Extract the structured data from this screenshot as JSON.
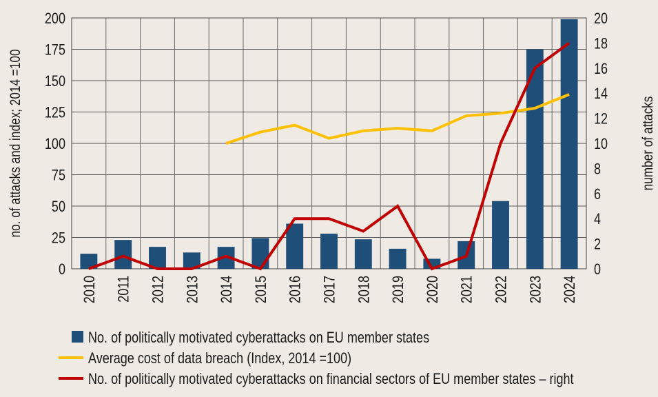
{
  "chart_data": {
    "type": "bar+line",
    "title": "",
    "categories": [
      "2010",
      "2011",
      "2012",
      "2013",
      "2014",
      "2015",
      "2016",
      "2017",
      "2018",
      "2019",
      "2020",
      "2021",
      "2022",
      "2023",
      "2024"
    ],
    "ylabel": "no. of attacks and index; 2014 =100",
    "y2label": "number of attacks",
    "ylim": [
      0,
      200
    ],
    "y2lim": [
      0,
      20
    ],
    "yticks": [
      "0",
      "25",
      "50",
      "75",
      "100",
      "125",
      "150",
      "175",
      "200"
    ],
    "y2ticks": [
      "0",
      "2",
      "4",
      "6",
      "8",
      "10",
      "12",
      "14",
      "16",
      "18",
      "20"
    ],
    "grid": true,
    "legend_position": "bottom",
    "series": [
      {
        "name": "No. of politically motivated cyberattacks on EU member states",
        "type": "bar",
        "axis": "left",
        "color": "#1f4e79",
        "values": [
          12,
          23,
          17.5,
          13,
          17.5,
          24.5,
          36,
          28,
          23.5,
          16,
          8,
          22,
          54,
          175,
          199
        ]
      },
      {
        "name": "Average cost of data breach (Index, 2014 =100)",
        "type": "line",
        "axis": "left",
        "color": "#ffc000",
        "values": [
          null,
          null,
          null,
          null,
          100,
          109,
          114.5,
          104,
          110,
          112,
          110,
          122,
          124,
          128,
          139
        ]
      },
      {
        "name": "No. of politically motivated cyberattacks on financial sectors of EU member states – right",
        "type": "line",
        "axis": "right",
        "color": "#c00000",
        "values": [
          0,
          1,
          0,
          0,
          1,
          0,
          4,
          4,
          3,
          5,
          0,
          1,
          10,
          16,
          18
        ]
      }
    ]
  }
}
